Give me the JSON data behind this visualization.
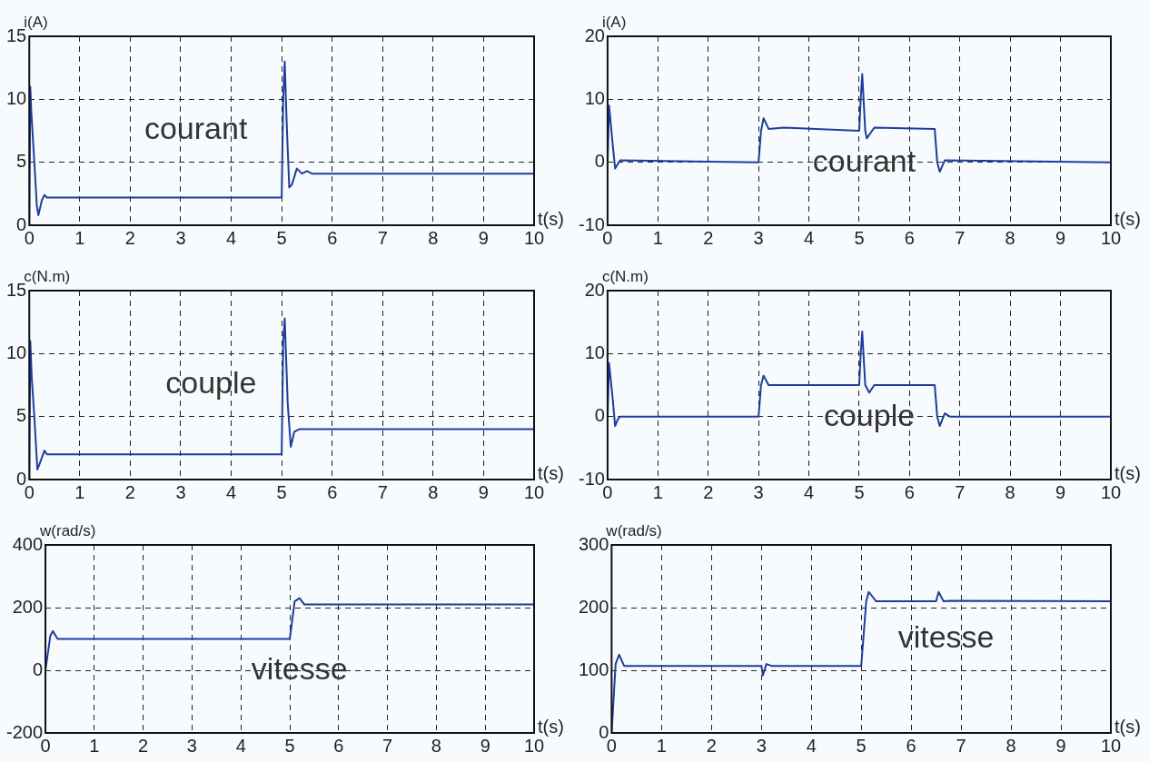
{
  "chart_data": [
    {
      "type": "line",
      "ylabel": "i(A)",
      "xlabel": "t(s)",
      "xlim": [
        0,
        10
      ],
      "xticks": [
        0,
        1,
        2,
        3,
        4,
        5,
        6,
        7,
        8,
        9,
        10
      ],
      "ylim": [
        0,
        15
      ],
      "yticks": [
        0,
        5,
        10,
        15
      ],
      "grid": true,
      "marker": "none",
      "line_style": "solid",
      "annotations": [
        "courant"
      ],
      "series": [
        {
          "color": "#1f3c9c",
          "x": [
            0,
            0.02,
            0.04,
            0.1,
            0.15,
            0.18,
            0.25,
            0.3,
            0.35,
            5,
            5.03,
            5.06,
            5.1,
            5.15,
            5.2,
            5.3,
            5.4,
            5.5,
            5.6,
            10
          ],
          "values": [
            0,
            11,
            9,
            5,
            1.5,
            0.8,
            2,
            2.4,
            2.2,
            2.2,
            10,
            13,
            8,
            3,
            3.2,
            4.5,
            4.1,
            4.3,
            4.1,
            4.1
          ]
        }
      ]
    },
    {
      "type": "line",
      "ylabel": "i(A)",
      "xlabel": "t(s)",
      "xlim": [
        0,
        10
      ],
      "xticks": [
        0,
        1,
        2,
        3,
        4,
        5,
        6,
        7,
        8,
        9,
        10
      ],
      "ylim": [
        -10,
        20
      ],
      "yticks": [
        -10,
        0,
        10,
        20
      ],
      "grid": true,
      "marker": "none",
      "line_style": "solid",
      "annotations": [
        "courant"
      ],
      "series": [
        {
          "color": "#1f3c9c",
          "x": [
            0,
            0.03,
            0.1,
            0.15,
            0.25,
            3,
            3.05,
            3.1,
            3.2,
            3.5,
            5,
            5.03,
            5.06,
            5.12,
            5.15,
            5.3,
            6.5,
            6.55,
            6.6,
            6.7,
            10
          ],
          "values": [
            0,
            9,
            3,
            -1,
            0.3,
            0,
            5,
            7,
            5.3,
            5.5,
            5,
            10,
            14,
            5,
            3.8,
            5.5,
            5.3,
            0,
            -1.5,
            0.3,
            0
          ]
        }
      ]
    },
    {
      "type": "line",
      "ylabel": "c(N.m)",
      "xlabel": "t(s)",
      "xlim": [
        0,
        10
      ],
      "xticks": [
        0,
        1,
        2,
        3,
        4,
        5,
        6,
        7,
        8,
        9,
        10
      ],
      "ylim": [
        0,
        15
      ],
      "yticks": [
        0,
        5,
        10,
        15
      ],
      "grid": true,
      "marker": "none",
      "line_style": "solid",
      "annotations": [
        "couple"
      ],
      "series": [
        {
          "color": "#1f3c9c",
          "x": [
            0,
            0.02,
            0.05,
            0.1,
            0.16,
            0.2,
            0.3,
            0.35,
            5,
            5.03,
            5.06,
            5.12,
            5.18,
            5.25,
            5.35,
            10
          ],
          "values": [
            0,
            11,
            8,
            5,
            0.8,
            1.2,
            2.3,
            2,
            2,
            11,
            12.8,
            6,
            2.6,
            3.8,
            4,
            4
          ]
        }
      ]
    },
    {
      "type": "line",
      "ylabel": "c(N.m)",
      "xlabel": "t(s)",
      "xlim": [
        0,
        10
      ],
      "xticks": [
        0,
        1,
        2,
        3,
        4,
        5,
        6,
        7,
        8,
        9,
        10
      ],
      "ylim": [
        -10,
        20
      ],
      "yticks": [
        -10,
        0,
        10,
        20
      ],
      "grid": true,
      "marker": "none",
      "line_style": "solid",
      "annotations": [
        "couple"
      ],
      "series": [
        {
          "color": "#1f3c9c",
          "x": [
            0,
            0.03,
            0.1,
            0.15,
            0.2,
            0.25,
            3,
            3.05,
            3.1,
            3.2,
            5,
            5.03,
            5.06,
            5.12,
            5.2,
            5.3,
            6.5,
            6.55,
            6.6,
            6.7,
            6.8,
            10
          ],
          "values": [
            0,
            8.5,
            3,
            -1.5,
            -0.5,
            0,
            0,
            5,
            6.5,
            5,
            5,
            10,
            13.5,
            5,
            3.8,
            5,
            5,
            0,
            -1.5,
            0.5,
            0,
            0
          ]
        }
      ]
    },
    {
      "type": "line",
      "ylabel": "w(rad/s)",
      "xlabel": "t(s)",
      "xlim": [
        0,
        10
      ],
      "xticks": [
        0,
        1,
        2,
        3,
        4,
        5,
        6,
        7,
        8,
        9,
        10
      ],
      "ylim": [
        -200,
        400
      ],
      "yticks": [
        -200,
        0,
        200,
        400
      ],
      "grid": true,
      "marker": "none",
      "line_style": "solid",
      "annotations": [
        "vitesse"
      ],
      "series": [
        {
          "color": "#1f3c9c",
          "x": [
            0,
            0.1,
            0.15,
            0.25,
            5,
            5.1,
            5.2,
            5.3,
            10
          ],
          "values": [
            0,
            110,
            125,
            100,
            100,
            220,
            230,
            210,
            210
          ]
        }
      ]
    },
    {
      "type": "line",
      "ylabel": "w(rad/s)",
      "xlabel": "t(s)",
      "xlim": [
        0,
        10
      ],
      "xticks": [
        0,
        1,
        2,
        3,
        4,
        5,
        6,
        7,
        8,
        9,
        10
      ],
      "ylim": [
        0,
        300
      ],
      "yticks": [
        0,
        100,
        200,
        300
      ],
      "grid": true,
      "marker": "none",
      "line_style": "solid",
      "annotations": [
        "vitesse"
      ],
      "series": [
        {
          "color": "#1f3c9c",
          "x": [
            0,
            0.08,
            0.15,
            0.25,
            3,
            3.03,
            3.1,
            3.2,
            5,
            5.1,
            5.15,
            5.3,
            6.5,
            6.55,
            6.65,
            6.8,
            10
          ],
          "values": [
            0,
            110,
            125,
            107,
            107,
            92,
            110,
            107,
            107,
            210,
            225,
            210,
            210,
            225,
            210,
            211,
            210
          ]
        }
      ]
    }
  ]
}
